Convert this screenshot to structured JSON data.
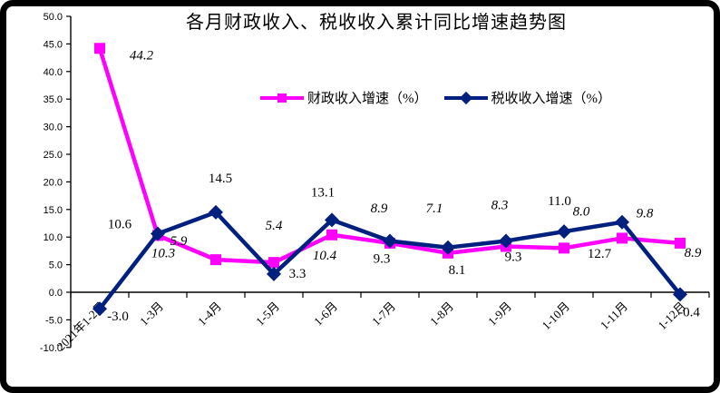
{
  "chart_data": {
    "type": "line",
    "title": "各月财政收入、税收收入累计同比增速趋势图",
    "xlabel": "",
    "ylabel": "",
    "categories": [
      "2021年1-2月",
      "1-3月",
      "1-4月",
      "1-5月",
      "1-6月",
      "1-7月",
      "1-8月",
      "1-9月",
      "1-10月",
      "1-11月",
      "1-12月"
    ],
    "series": [
      {
        "name": "财政收入增速（%）",
        "color": "#FF00FF",
        "marker": "square",
        "label_font_style": "italic",
        "values": [
          44.2,
          10.3,
          5.9,
          5.4,
          10.4,
          8.9,
          7.1,
          8.3,
          8.0,
          9.8,
          8.9
        ],
        "label_offsets": [
          [
            46,
            7
          ],
          [
            6,
            19
          ],
          [
            -41,
            -21
          ],
          [
            0,
            -41
          ],
          [
            -8,
            22
          ],
          [
            -12,
            -39
          ],
          [
            -15,
            -50
          ],
          [
            -7,
            -46
          ],
          [
            19,
            -41
          ],
          [
            25,
            -28
          ],
          [
            14,
            10
          ]
        ]
      },
      {
        "name": "税收收入增速（%）",
        "color": "#002080",
        "marker": "diamond",
        "label_font_style": "normal",
        "values": [
          -3.0,
          10.6,
          14.5,
          3.3,
          13.1,
          9.3,
          8.1,
          9.3,
          11.0,
          12.7,
          -0.4
        ],
        "label_offsets": [
          [
            20,
            8
          ],
          [
            -42,
            -11
          ],
          [
            5,
            -38
          ],
          [
            26,
            -1
          ],
          [
            -10,
            -31
          ],
          [
            -9,
            19
          ],
          [
            10,
            24
          ],
          [
            8,
            17
          ],
          [
            -5,
            -34
          ],
          [
            -25,
            34
          ],
          [
            10,
            19
          ]
        ]
      }
    ],
    "ylim": [
      -10,
      50
    ],
    "ytick_step": 5,
    "ytick_labels": [
      "50.0",
      "45.0",
      "40.0",
      "35.0",
      "30.0",
      "25.0",
      "20.0",
      "15.0",
      "10.0",
      "5.0",
      "0.0",
      "-5.0",
      "-10.0"
    ],
    "value_format_decimals": 1,
    "grid": false,
    "legend_position": "top-center"
  }
}
